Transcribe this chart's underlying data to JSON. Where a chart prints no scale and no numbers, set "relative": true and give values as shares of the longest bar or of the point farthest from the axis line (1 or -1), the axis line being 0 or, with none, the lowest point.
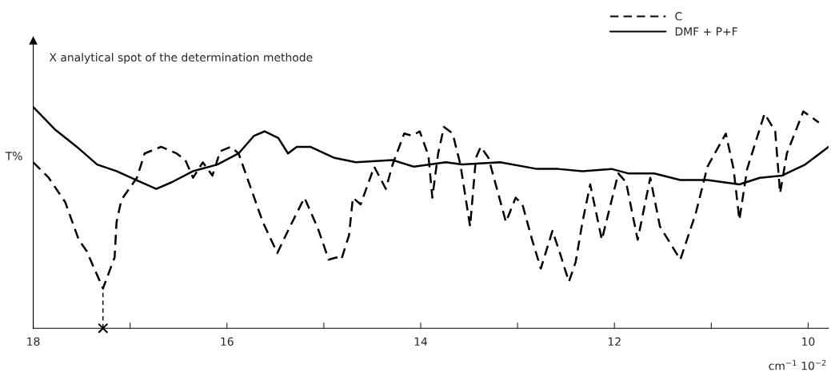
{
  "chart_data": {
    "type": "line",
    "relative": true,
    "ylabel": "T%",
    "xlabel": "cm$^{−1}$ 10$^{−2}$",
    "xlim": [
      18,
      9.79
    ],
    "xticks": [
      18,
      {
        "value": 17,
        "label": null
      },
      16,
      {
        "value": 15,
        "label": null
      },
      14,
      {
        "value": 13,
        "label": null
      },
      12,
      {
        "value": 11,
        "label": null
      },
      10
    ],
    "legend": "top right",
    "grid": false,
    "marker": "none",
    "annotations": [
      "X analytical spot of the determination methode"
    ],
    "series": [
      {
        "name": "C",
        "color": "#000000",
        "line_style": "dashed",
        "x": [
          18.0,
          17.84,
          17.67,
          17.53,
          17.45,
          17.28,
          17.22,
          17.16,
          17.14,
          17.09,
          16.93,
          16.85,
          16.68,
          16.52,
          16.43,
          16.35,
          16.25,
          16.15,
          16.07,
          15.96,
          15.88,
          15.63,
          15.48,
          15.36,
          15.2,
          15.06,
          14.95,
          14.87,
          14.82,
          14.74,
          14.7,
          14.62,
          14.48,
          14.36,
          14.29,
          14.17,
          14.09,
          14.01,
          13.92,
          13.88,
          13.82,
          13.76,
          13.67,
          13.59,
          13.49,
          13.43,
          13.38,
          13.3,
          13.12,
          13.02,
          12.95,
          12.85,
          12.76,
          12.64,
          12.57,
          12.47,
          12.4,
          12.33,
          12.25,
          12.13,
          11.96,
          11.88,
          11.76,
          11.63,
          11.53,
          11.32,
          11.16,
          11.04,
          10.85,
          10.77,
          10.71,
          10.63,
          10.45,
          10.34,
          10.29,
          10.22,
          10.05,
          9.89
        ],
        "values": [
          0.75,
          0.68,
          0.57,
          0.4,
          0.35,
          0.18,
          0.25,
          0.32,
          0.48,
          0.58,
          0.68,
          0.79,
          0.82,
          0.79,
          0.76,
          0.68,
          0.75,
          0.69,
          0.8,
          0.82,
          0.79,
          0.48,
          0.34,
          0.45,
          0.59,
          0.45,
          0.31,
          0.32,
          0.31,
          0.42,
          0.59,
          0.56,
          0.73,
          0.63,
          0.74,
          0.88,
          0.87,
          0.89,
          0.78,
          0.59,
          0.79,
          0.91,
          0.88,
          0.74,
          0.46,
          0.77,
          0.82,
          0.77,
          0.48,
          0.59,
          0.56,
          0.4,
          0.27,
          0.44,
          0.35,
          0.21,
          0.3,
          0.48,
          0.65,
          0.4,
          0.7,
          0.66,
          0.4,
          0.68,
          0.46,
          0.31,
          0.52,
          0.73,
          0.88,
          0.72,
          0.49,
          0.72,
          0.97,
          0.89,
          0.61,
          0.79,
          0.98,
          0.93
        ]
      },
      {
        "name": "DMF + P+F",
        "color": "#000000",
        "line_style": "solid",
        "x": [
          18.0,
          17.78,
          17.55,
          17.34,
          17.14,
          16.94,
          16.73,
          16.57,
          16.35,
          16.1,
          15.88,
          15.72,
          15.61,
          15.47,
          15.37,
          15.28,
          15.14,
          14.89,
          14.67,
          14.29,
          14.07,
          13.74,
          13.57,
          13.18,
          12.8,
          12.58,
          12.33,
          12.03,
          11.86,
          11.59,
          11.32,
          11.04,
          10.71,
          10.5,
          10.27,
          10.03,
          9.79
        ],
        "values": [
          1.0,
          0.9,
          0.82,
          0.74,
          0.71,
          0.67,
          0.63,
          0.66,
          0.71,
          0.74,
          0.79,
          0.87,
          0.89,
          0.86,
          0.79,
          0.82,
          0.82,
          0.77,
          0.75,
          0.76,
          0.73,
          0.75,
          0.74,
          0.75,
          0.72,
          0.72,
          0.71,
          0.72,
          0.7,
          0.7,
          0.67,
          0.67,
          0.65,
          0.68,
          0.69,
          0.74,
          0.82
        ]
      }
    ]
  }
}
